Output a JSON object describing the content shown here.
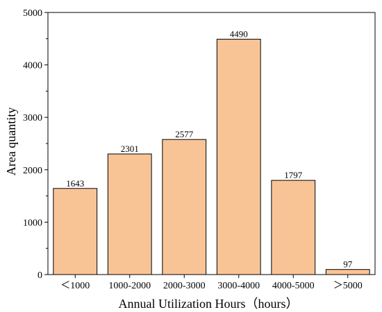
{
  "chart_data": {
    "type": "bar",
    "categories": [
      "＜1000",
      "1000-2000",
      "2000-3000",
      "3000-4000",
      "4000-5000",
      "＞5000"
    ],
    "values": [
      1643,
      2301,
      2577,
      4490,
      1797,
      97
    ],
    "data_labels": [
      "1643",
      "2301",
      "2577",
      "4490",
      "1797",
      "97"
    ],
    "xlabel": "Annual Utilization Hours（hours）",
    "ylabel": "Area quantity",
    "ylim": [
      0,
      5000
    ],
    "yticks": [
      0,
      1000,
      2000,
      3000,
      4000,
      5000
    ],
    "ytick_labels": [
      "0",
      "1000",
      "2000",
      "3000",
      "4000",
      "5000"
    ],
    "grid": false,
    "legend": "none",
    "bar_color": "#f8c496",
    "edge_color": "#000000"
  }
}
